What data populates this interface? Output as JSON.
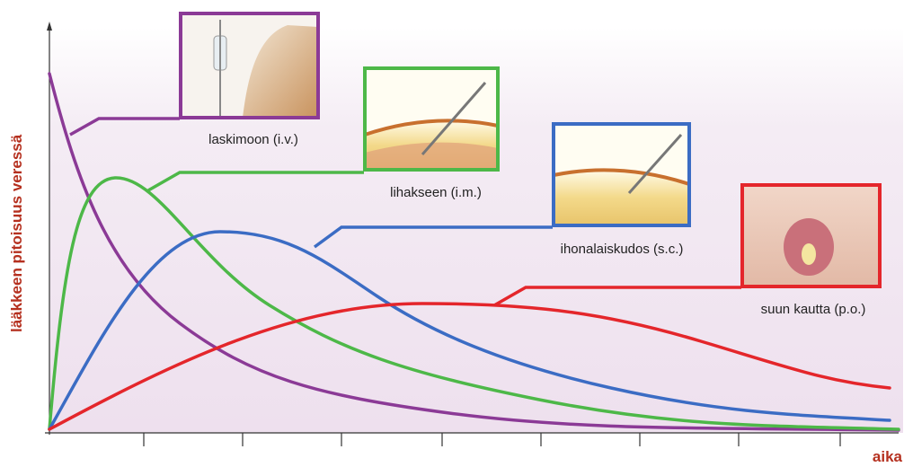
{
  "y_axis_label": "lääkkeen pitoisuus veressä",
  "x_axis_label": "aika",
  "routes": [
    {
      "label": "laskimoon (i.v.)"
    },
    {
      "label": "lihakseen (i.m.)"
    },
    {
      "label": "ihonalaiskudos (s.c.)"
    },
    {
      "label": "suun kautta (p.o.)"
    }
  ]
}
